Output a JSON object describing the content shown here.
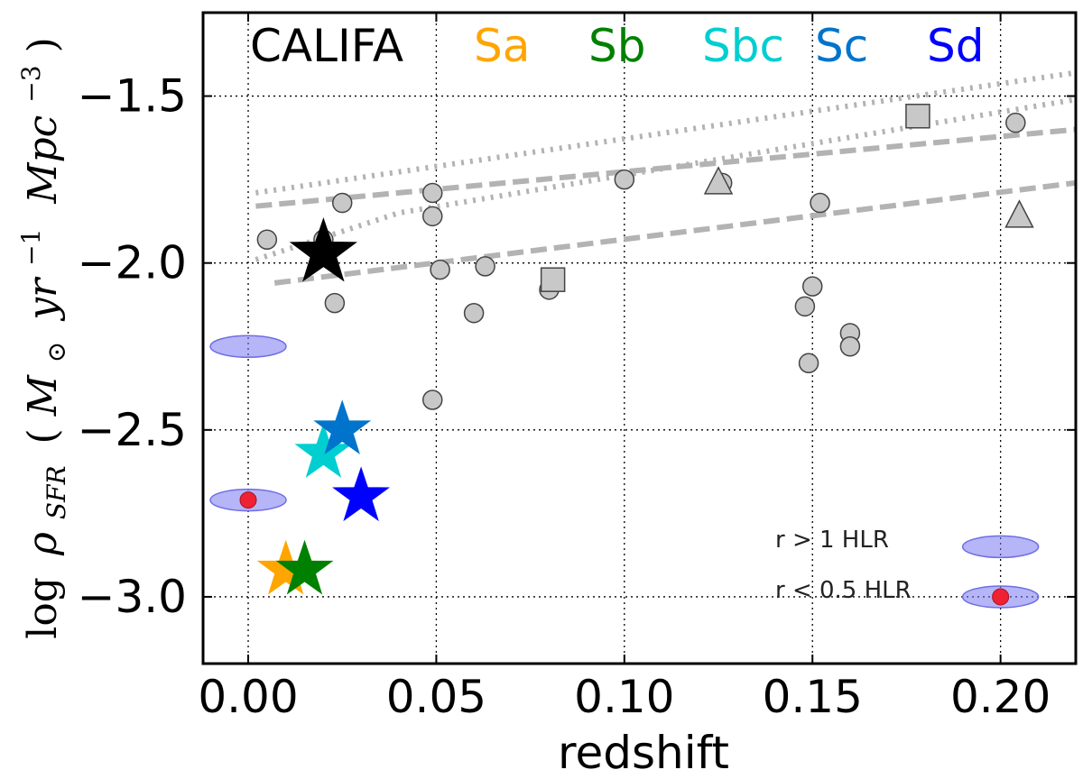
{
  "chart_data": {
    "type": "scatter",
    "xlabel": "redshift",
    "ylabel": "log ρ_SFR (M⊙ yr⁻¹ Mpc⁻³)",
    "ylabel_parts": {
      "prefix": "log",
      "rho": "ρ",
      "sub": "SFR",
      "open": "(",
      "msun": "M",
      "sun": "⊙",
      "yr": "yr",
      "yr_exp": "−1",
      "mpc": "Mpc",
      "mpc_exp": "−3",
      "close": ")"
    },
    "xlim": [
      -0.012,
      0.22
    ],
    "ylim": [
      -3.2,
      -1.25
    ],
    "xticks": [
      0.0,
      0.05,
      0.1,
      0.15,
      0.2
    ],
    "xtick_labels": [
      "0.00",
      "0.05",
      "0.10",
      "0.15",
      "0.20"
    ],
    "yticks": [
      -3.0,
      -2.5,
      -2.0,
      -1.5
    ],
    "ytick_labels": [
      "−3.0",
      "−2.5",
      "−2.0",
      "−1.5"
    ],
    "grid": true,
    "legend_top": [
      {
        "label": "CALIFA",
        "color": "#000000"
      },
      {
        "label": "Sa",
        "color": "#FFA500"
      },
      {
        "label": "Sb",
        "color": "#008000"
      },
      {
        "label": "Sbc",
        "color": "#00CED1"
      },
      {
        "label": "Sc",
        "color": "#0074CC"
      },
      {
        "label": "Sd",
        "color": "#0000FF"
      }
    ],
    "stars": [
      {
        "name": "CALIFA",
        "x": 0.02,
        "y": -1.97,
        "color": "#000000"
      },
      {
        "name": "Sa",
        "x": 0.01,
        "y": -2.92,
        "color": "#FFA500"
      },
      {
        "name": "Sb",
        "x": 0.015,
        "y": -2.92,
        "color": "#008000"
      },
      {
        "name": "Sbc",
        "x": 0.02,
        "y": -2.57,
        "color": "#00CED1"
      },
      {
        "name": "Sc",
        "x": 0.025,
        "y": -2.5,
        "color": "#0074CC"
      },
      {
        "name": "Sd",
        "x": 0.03,
        "y": -2.7,
        "color": "#0000FF"
      }
    ],
    "circles": [
      [
        0.005,
        -1.93
      ],
      [
        0.02,
        -1.93
      ],
      [
        0.025,
        -1.82
      ],
      [
        0.023,
        -2.12
      ],
      [
        0.049,
        -1.79
      ],
      [
        0.049,
        -1.86
      ],
      [
        0.051,
        -2.02
      ],
      [
        0.049,
        -2.41
      ],
      [
        0.06,
        -2.15
      ],
      [
        0.063,
        -2.01
      ],
      [
        0.08,
        -2.08
      ],
      [
        0.1,
        -1.75
      ],
      [
        0.126,
        -1.76
      ],
      [
        0.148,
        -2.13
      ],
      [
        0.15,
        -2.07
      ],
      [
        0.152,
        -1.82
      ],
      [
        0.149,
        -2.3
      ],
      [
        0.16,
        -2.21
      ],
      [
        0.16,
        -2.25
      ],
      [
        0.204,
        -1.58
      ]
    ],
    "squares": [
      [
        0.081,
        -2.05
      ],
      [
        0.178,
        -1.56
      ]
    ],
    "triangles": [
      [
        0.125,
        -1.76
      ],
      [
        0.205,
        -1.86
      ]
    ],
    "lines": [
      {
        "style": "dotted",
        "points": [
          [
            0.002,
            -1.79
          ],
          [
            0.22,
            -1.43
          ]
        ]
      },
      {
        "style": "dotted",
        "points": [
          [
            0.002,
            -1.99
          ],
          [
            0.04,
            -1.85
          ],
          [
            0.22,
            -1.51
          ]
        ]
      },
      {
        "style": "dashed",
        "points": [
          [
            0.002,
            -1.83
          ],
          [
            0.22,
            -1.6
          ]
        ]
      },
      {
        "style": "dashed",
        "points": [
          [
            0.007,
            -2.06
          ],
          [
            0.22,
            -1.76
          ]
        ]
      }
    ],
    "ellipses": [
      {
        "x": 0.0,
        "y": -2.25,
        "with_dot": false
      },
      {
        "x": 0.0,
        "y": -2.71,
        "with_dot": true
      },
      {
        "x": 0.2,
        "y": -2.85,
        "with_dot": false
      },
      {
        "x": 0.2,
        "y": -3.0,
        "with_dot": true
      }
    ],
    "legend_right": [
      {
        "label": "r > 1 HLR",
        "with_dot": false
      },
      {
        "label": "r < 0.5 HLR",
        "with_dot": true
      }
    ]
  }
}
